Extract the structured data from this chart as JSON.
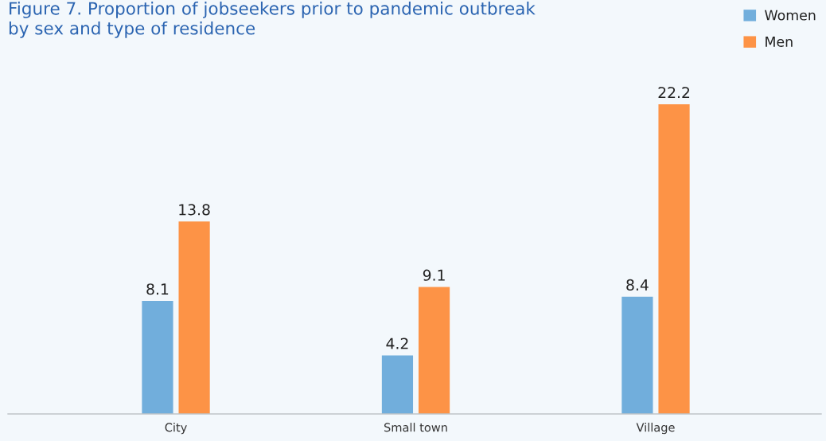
{
  "chart_data": {
    "type": "bar",
    "title": "Figure 7. Proportion of jobseekers prior to pandemic outbreak\nby sex and type of residence",
    "categories": [
      "City",
      "Small town",
      "Village"
    ],
    "series": [
      {
        "name": "Women",
        "color": "#71aedc",
        "values": [
          8.1,
          4.2,
          8.4
        ]
      },
      {
        "name": "Men",
        "color": "#fd9346",
        "values": [
          13.8,
          9.1,
          22.2
        ]
      }
    ],
    "data_labels": true,
    "legend": "top right",
    "tick_labels": "x"
  }
}
